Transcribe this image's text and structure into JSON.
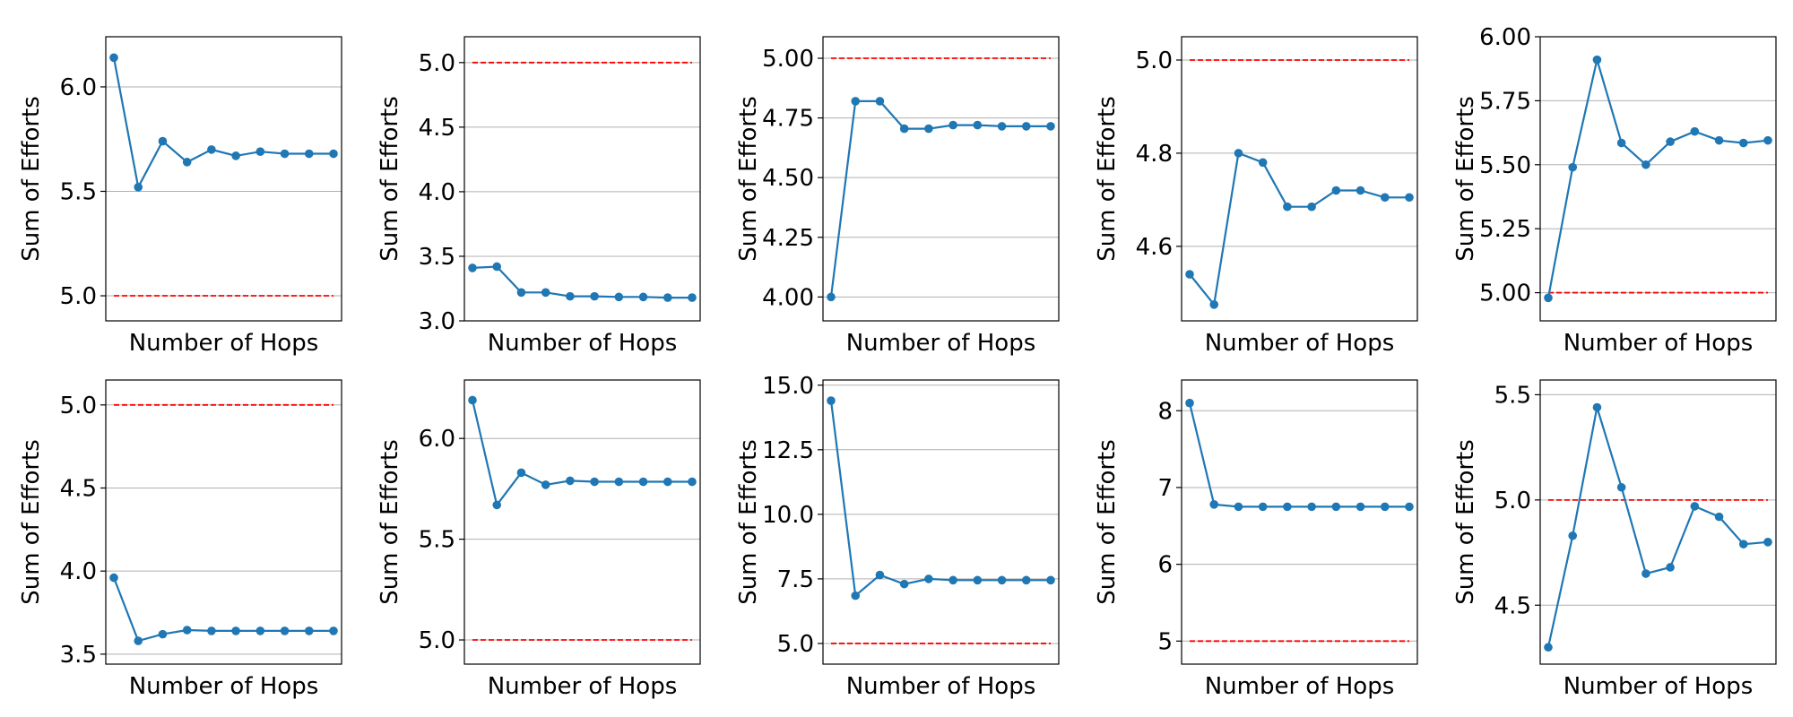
{
  "style": {
    "line_color": "#1f77b4",
    "ref_color": "#ff0000",
    "grid_color": "#b0b0b0",
    "frame_color": "#000000",
    "grid": "horizontal"
  },
  "chart_data": [
    {
      "type": "line",
      "xlabel": "Number of Hops",
      "ylabel": "Sum of Efforts",
      "ylim": [
        4.88,
        6.24
      ],
      "yticks": [
        5.0,
        5.5,
        6.0
      ],
      "ytick_labels": [
        "5.0",
        "5.5",
        "6.0"
      ],
      "reference_line": 5.0,
      "series": [
        {
          "values": [
            6.14,
            5.52,
            5.74,
            5.64,
            5.7,
            5.67,
            5.69,
            5.68,
            5.68,
            5.68
          ]
        }
      ]
    },
    {
      "type": "line",
      "xlabel": "Number of Hops",
      "ylabel": "Sum of Efforts",
      "ylim": [
        3.0,
        5.2
      ],
      "yticks": [
        3.0,
        3.5,
        4.0,
        4.5,
        5.0
      ],
      "ytick_labels": [
        "3.0",
        "3.5",
        "4.0",
        "4.5",
        "5.0"
      ],
      "reference_line": 5.0,
      "series": [
        {
          "values": [
            3.41,
            3.42,
            3.22,
            3.22,
            3.19,
            3.19,
            3.185,
            3.185,
            3.18,
            3.18
          ]
        }
      ]
    },
    {
      "type": "line",
      "xlabel": "Number of Hops",
      "ylabel": "Sum of Efforts",
      "ylim": [
        3.9,
        5.09
      ],
      "yticks": [
        4.0,
        4.25,
        4.5,
        4.75,
        5.0
      ],
      "ytick_labels": [
        "4.00",
        "4.25",
        "4.50",
        "4.75",
        "5.00"
      ],
      "reference_line": 5.0,
      "series": [
        {
          "values": [
            4.0,
            4.82,
            4.82,
            4.705,
            4.705,
            4.72,
            4.72,
            4.715,
            4.715,
            4.715
          ]
        }
      ]
    },
    {
      "type": "line",
      "xlabel": "Number of Hops",
      "ylabel": "Sum of Efforts",
      "ylim": [
        4.44,
        5.05
      ],
      "yticks": [
        4.6,
        4.8,
        5.0
      ],
      "ytick_labels": [
        "4.6",
        "4.8",
        "5.0"
      ],
      "reference_line": 5.0,
      "series": [
        {
          "values": [
            4.54,
            4.475,
            4.8,
            4.78,
            4.685,
            4.685,
            4.72,
            4.72,
            4.705,
            4.705
          ]
        }
      ]
    },
    {
      "type": "line",
      "xlabel": "Number of Hops",
      "ylabel": "Sum of Efforts",
      "ylim": [
        4.89,
        6.0
      ],
      "yticks": [
        5.0,
        5.25,
        5.5,
        5.75,
        6.0
      ],
      "ytick_labels": [
        "5.00",
        "5.25",
        "5.50",
        "5.75",
        "6.00"
      ],
      "reference_line": 5.0,
      "series": [
        {
          "values": [
            4.98,
            5.49,
            5.91,
            5.585,
            5.5,
            5.59,
            5.63,
            5.595,
            5.585,
            5.595
          ]
        }
      ]
    },
    {
      "type": "line",
      "xlabel": "Number of Hops",
      "ylabel": "Sum of Efforts",
      "ylim": [
        3.44,
        5.15
      ],
      "yticks": [
        3.5,
        4.0,
        4.5,
        5.0
      ],
      "ytick_labels": [
        "3.5",
        "4.0",
        "4.5",
        "5.0"
      ],
      "reference_line": 5.0,
      "series": [
        {
          "values": [
            3.96,
            3.58,
            3.62,
            3.645,
            3.64,
            3.64,
            3.64,
            3.64,
            3.64,
            3.64
          ]
        }
      ]
    },
    {
      "type": "line",
      "xlabel": "Number of Hops",
      "ylabel": "Sum of Efforts",
      "ylim": [
        4.88,
        6.29
      ],
      "yticks": [
        5.0,
        5.5,
        6.0
      ],
      "ytick_labels": [
        "5.0",
        "5.5",
        "6.0"
      ],
      "reference_line": 5.0,
      "series": [
        {
          "values": [
            6.19,
            5.67,
            5.83,
            5.77,
            5.79,
            5.785,
            5.785,
            5.785,
            5.785,
            5.785
          ]
        }
      ]
    },
    {
      "type": "line",
      "xlabel": "Number of Hops",
      "ylabel": "Sum of Efforts",
      "ylim": [
        4.2,
        15.2
      ],
      "yticks": [
        5.0,
        7.5,
        10.0,
        12.5,
        15.0
      ],
      "ytick_labels": [
        "5.0",
        "7.5",
        "10.0",
        "12.5",
        "15.0"
      ],
      "reference_line": 5.0,
      "series": [
        {
          "values": [
            14.4,
            6.85,
            7.65,
            7.3,
            7.5,
            7.45,
            7.45,
            7.45,
            7.45,
            7.45
          ]
        }
      ]
    },
    {
      "type": "line",
      "xlabel": "Number of Hops",
      "ylabel": "Sum of Efforts",
      "ylim": [
        4.7,
        8.4
      ],
      "yticks": [
        5,
        6,
        7,
        8
      ],
      "ytick_labels": [
        "5",
        "6",
        "7",
        "8"
      ],
      "reference_line": 5.0,
      "series": [
        {
          "values": [
            8.1,
            6.78,
            6.75,
            6.75,
            6.75,
            6.75,
            6.75,
            6.75,
            6.75,
            6.75
          ]
        }
      ]
    },
    {
      "type": "line",
      "xlabel": "Number of Hops",
      "ylabel": "Sum of Efforts",
      "ylim": [
        4.22,
        5.57
      ],
      "yticks": [
        4.5,
        5.0,
        5.5
      ],
      "ytick_labels": [
        "4.5",
        "5.0",
        "5.5"
      ],
      "reference_line": 5.0,
      "series": [
        {
          "values": [
            4.3,
            4.83,
            5.44,
            5.06,
            4.65,
            4.68,
            4.97,
            4.92,
            4.79,
            4.8
          ]
        }
      ]
    }
  ]
}
